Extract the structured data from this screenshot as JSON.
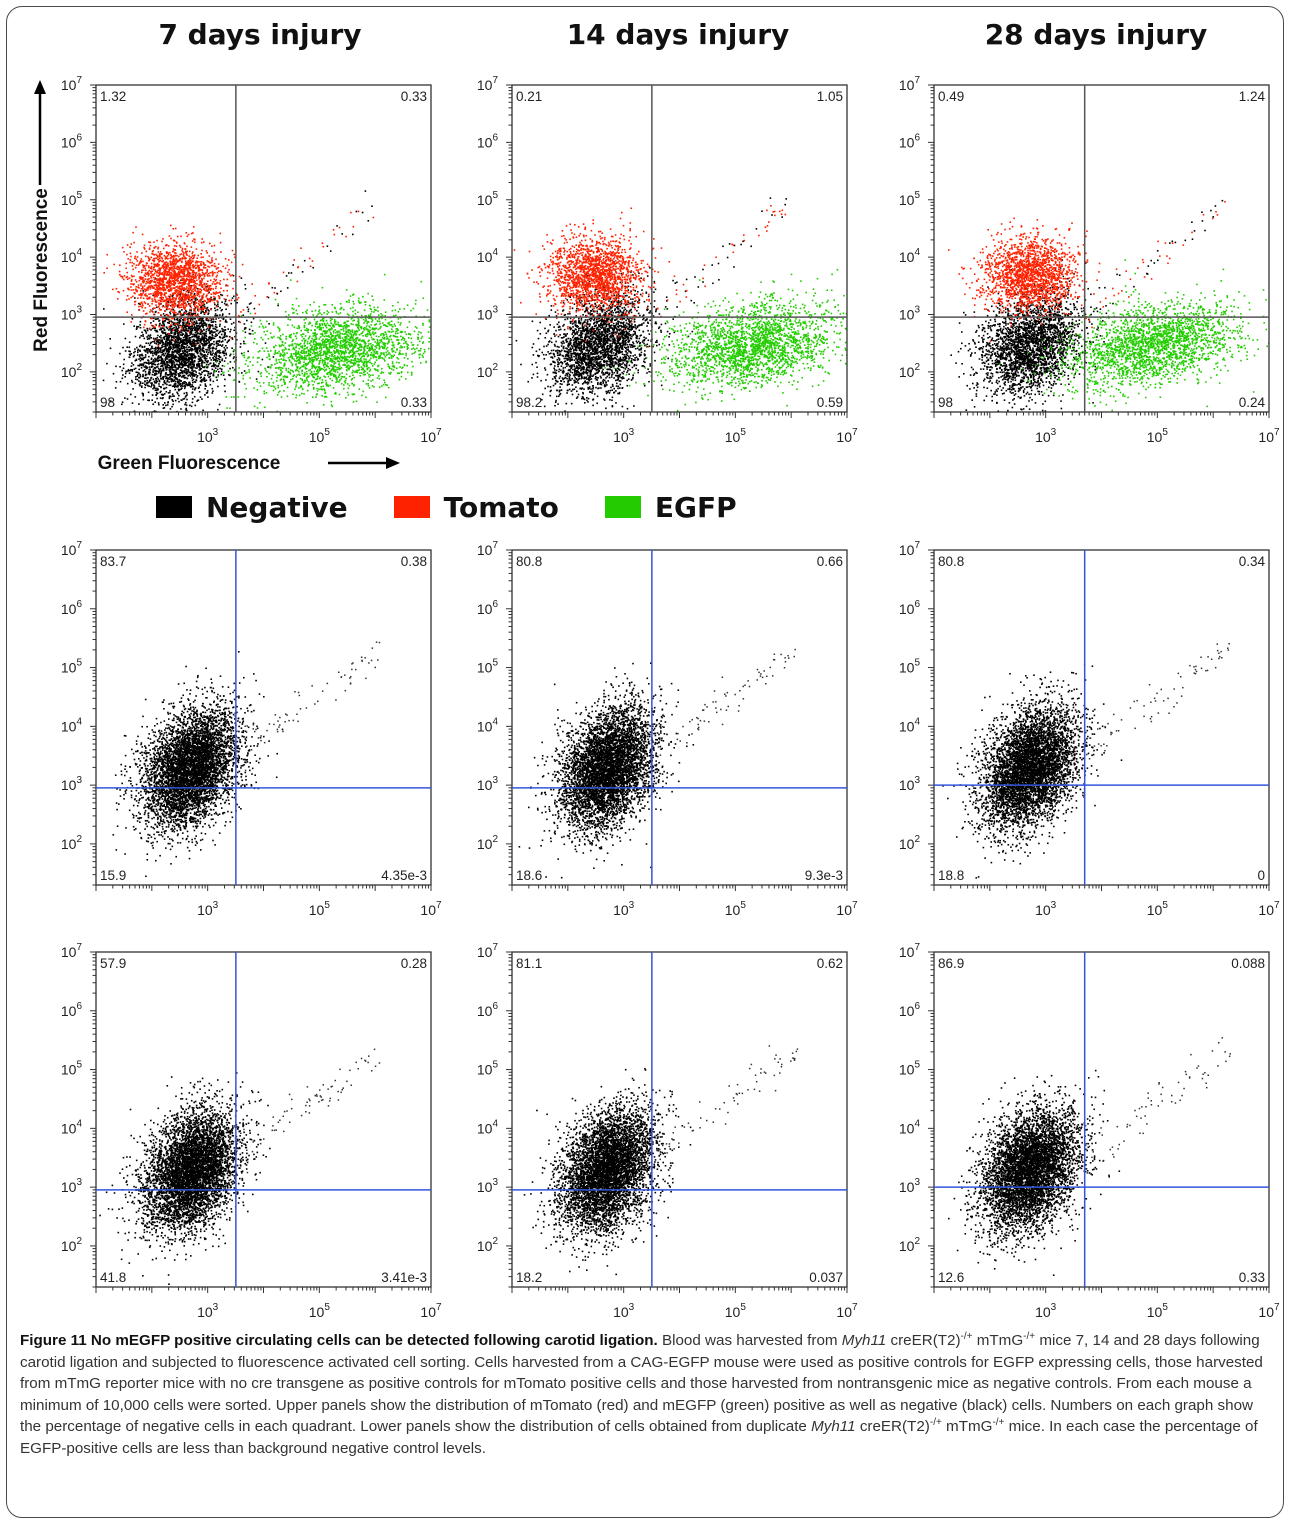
{
  "columns": [
    "7 days injury",
    "14 days injury",
    "28 days injury"
  ],
  "axis_labels": {
    "x": "Green Fluorescence",
    "y": "Red Fluorescence"
  },
  "legend": [
    {
      "label": "Negative",
      "color": "#000000"
    },
    {
      "label": "Tomato",
      "color": "#ff2200"
    },
    {
      "label": "EGFP",
      "color": "#22cc00"
    }
  ],
  "chart_data": [
    {
      "type": "scatter",
      "panel": "7 days injury, upper",
      "scale": "log",
      "xlim": [
        10,
        10000000
      ],
      "ylim": [
        20,
        10000000
      ],
      "x_ticks": [
        "10^3",
        "10^5",
        "10^7"
      ],
      "y_ticks": [
        "10^2",
        "10^3",
        "10^4",
        "10^5",
        "10^6",
        "10^7"
      ],
      "gate": {
        "x": 3200,
        "y": 900
      },
      "gate_color": "#555555",
      "quadrants": {
        "upper_left": "1.32",
        "upper_right": "0.33",
        "lower_left": "98",
        "lower_right": "0.33"
      },
      "series": [
        {
          "name": "Negative",
          "color": "#000000",
          "cluster_center": [
            350,
            250
          ]
        },
        {
          "name": "Tomato",
          "color": "#ff2200",
          "cluster_center": [
            250,
            4000
          ]
        },
        {
          "name": "EGFP",
          "color": "#22cc00",
          "cluster_center": [
            200000,
            250
          ]
        }
      ]
    },
    {
      "type": "scatter",
      "panel": "14 days injury, upper",
      "scale": "log",
      "xlim": [
        10,
        10000000
      ],
      "ylim": [
        20,
        10000000
      ],
      "x_ticks": [
        "10^3",
        "10^5",
        "10^7"
      ],
      "y_ticks": [
        "10^2",
        "10^3",
        "10^4",
        "10^5",
        "10^6",
        "10^7"
      ],
      "gate": {
        "x": 3200,
        "y": 900
      },
      "gate_color": "#555555",
      "quadrants": {
        "upper_left": "0.21",
        "upper_right": "1.05",
        "lower_left": "98.2",
        "lower_right": "0.59"
      },
      "series": [
        {
          "name": "Negative",
          "color": "#000000",
          "cluster_center": [
            350,
            300
          ]
        },
        {
          "name": "Tomato",
          "color": "#ff2200",
          "cluster_center": [
            300,
            5000
          ]
        },
        {
          "name": "EGFP",
          "color": "#22cc00",
          "cluster_center": [
            200000,
            300
          ]
        }
      ]
    },
    {
      "type": "scatter",
      "panel": "28 days injury, upper",
      "scale": "log",
      "xlim": [
        10,
        10000000
      ],
      "ylim": [
        20,
        10000000
      ],
      "x_ticks": [
        "10^3",
        "10^5",
        "10^7"
      ],
      "y_ticks": [
        "10^2",
        "10^3",
        "10^4",
        "10^5",
        "10^6",
        "10^7"
      ],
      "gate": {
        "x": 5000,
        "y": 900
      },
      "gate_color": "#555555",
      "quadrants": {
        "upper_left": "0.49",
        "upper_right": "1.24",
        "lower_left": "98",
        "lower_right": "0.24"
      },
      "series": [
        {
          "name": "Negative",
          "color": "#000000",
          "cluster_center": [
            500,
            300
          ]
        },
        {
          "name": "Tomato",
          "color": "#ff2200",
          "cluster_center": [
            500,
            5000
          ]
        },
        {
          "name": "EGFP",
          "color": "#22cc00",
          "cluster_center": [
            80000,
            300
          ]
        }
      ]
    },
    {
      "type": "scatter",
      "panel": "7 days injury, duplicate 1",
      "scale": "log",
      "xlim": [
        10,
        10000000
      ],
      "ylim": [
        20,
        10000000
      ],
      "x_ticks": [
        "10^3",
        "10^5",
        "10^7"
      ],
      "y_ticks": [
        "10^2",
        "10^3",
        "10^4",
        "10^5",
        "10^6",
        "10^7"
      ],
      "gate": {
        "x": 3200,
        "y": 900
      },
      "gate_color": "#3355dd",
      "quadrants": {
        "upper_left": "83.7",
        "upper_right": "0.38",
        "lower_left": "15.9",
        "lower_right": "4.35e-3"
      }
    },
    {
      "type": "scatter",
      "panel": "14 days injury, duplicate 1",
      "scale": "log",
      "xlim": [
        10,
        10000000
      ],
      "ylim": [
        20,
        10000000
      ],
      "x_ticks": [
        "10^3",
        "10^5",
        "10^7"
      ],
      "y_ticks": [
        "10^2",
        "10^3",
        "10^4",
        "10^5",
        "10^6",
        "10^7"
      ],
      "gate": {
        "x": 3200,
        "y": 900
      },
      "gate_color": "#3355dd",
      "quadrants": {
        "upper_left": "80.8",
        "upper_right": "0.66",
        "lower_left": "18.6",
        "lower_right": "9.3e-3"
      }
    },
    {
      "type": "scatter",
      "panel": "28 days injury, duplicate 1",
      "scale": "log",
      "xlim": [
        10,
        10000000
      ],
      "ylim": [
        20,
        10000000
      ],
      "x_ticks": [
        "10^3",
        "10^5",
        "10^7"
      ],
      "y_ticks": [
        "10^2",
        "10^3",
        "10^4",
        "10^5",
        "10^6",
        "10^7"
      ],
      "gate": {
        "x": 5000,
        "y": 1000
      },
      "gate_color": "#3355dd",
      "quadrants": {
        "upper_left": "80.8",
        "upper_right": "0.34",
        "lower_left": "18.8",
        "lower_right": "0"
      }
    },
    {
      "type": "scatter",
      "panel": "7 days injury, duplicate 2",
      "scale": "log",
      "xlim": [
        10,
        10000000
      ],
      "ylim": [
        20,
        10000000
      ],
      "x_ticks": [
        "10^3",
        "10^5",
        "10^7"
      ],
      "y_ticks": [
        "10^2",
        "10^3",
        "10^4",
        "10^5",
        "10^6",
        "10^7"
      ],
      "gate": {
        "x": 3200,
        "y": 900
      },
      "gate_color": "#3355dd",
      "quadrants": {
        "upper_left": "57.9",
        "upper_right": "0.28",
        "lower_left": "41.8",
        "lower_right": "3.41e-3"
      }
    },
    {
      "type": "scatter",
      "panel": "14 days injury, duplicate 2",
      "scale": "log",
      "xlim": [
        10,
        10000000
      ],
      "ylim": [
        20,
        10000000
      ],
      "x_ticks": [
        "10^3",
        "10^5",
        "10^7"
      ],
      "y_ticks": [
        "10^2",
        "10^3",
        "10^4",
        "10^5",
        "10^6",
        "10^7"
      ],
      "gate": {
        "x": 3200,
        "y": 900
      },
      "gate_color": "#3355dd",
      "quadrants": {
        "upper_left": "81.1",
        "upper_right": "0.62",
        "lower_left": "18.2",
        "lower_right": "0.037"
      }
    },
    {
      "type": "scatter",
      "panel": "28 days injury, duplicate 2",
      "scale": "log",
      "xlim": [
        10,
        10000000
      ],
      "ylim": [
        20,
        10000000
      ],
      "x_ticks": [
        "10^3",
        "10^5",
        "10^7"
      ],
      "y_ticks": [
        "10^2",
        "10^3",
        "10^4",
        "10^5",
        "10^6",
        "10^7"
      ],
      "gate": {
        "x": 5000,
        "y": 1000
      },
      "gate_color": "#3355dd",
      "quadrants": {
        "upper_left": "86.9",
        "upper_right": "0.088",
        "lower_left": "12.6",
        "lower_right": "0.33"
      }
    }
  ],
  "caption": {
    "title": "Figure 11 No mEGFP positive circulating cells can be detected following carotid ligation.",
    "s1": "Blood was harvested from",
    "gene": "Myh11",
    "cre": "creER(T2)",
    "genotype_sup": "-/+",
    "mtmg": "mTmG",
    "s2": "mice 7, 14 and 28 days following carotid ligation and subjected to fluorescence activated cell sorting. Cells harvested from a CAG-EGFP mouse were used as positive controls for EGFP expressing cells, those harvested from mTmG reporter mice with no cre transgene as positive controls for mTomato positive cells and those harvested from nontransgenic mice as negative controls. From each mouse a minimum of 10,000 cells were sorted. Upper panels show the distribution of mTomato (red) and mEGFP (green) positive as well as negative (black) cells. Numbers on each graph show the percentage of negative cells in each quadrant. Lower panels show the distribution of cells obtained from duplicate",
    "s3": "mice. In each case the percentage of EGFP-positive cells are less than background negative control levels."
  }
}
